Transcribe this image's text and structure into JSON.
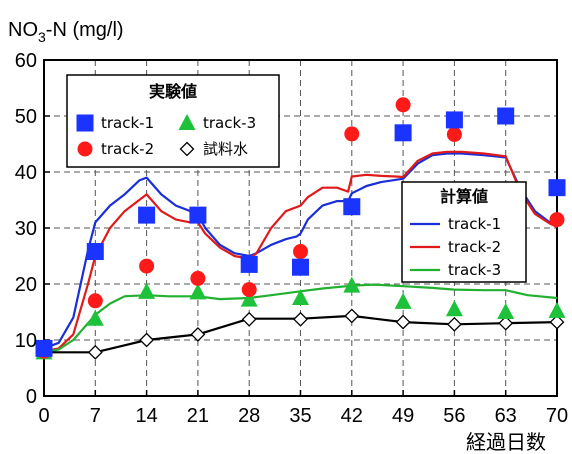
{
  "chart_data": {
    "type": "line",
    "ylabel_main": "NO",
    "ylabel_sub": "3",
    "ylabel_rest": "-N (mg/l)",
    "xlabel": "経過日数",
    "xlim": [
      0,
      70
    ],
    "ylim": [
      0,
      60
    ],
    "xticks": [
      0,
      7,
      14,
      21,
      28,
      35,
      42,
      49,
      56,
      63,
      70
    ],
    "yticks": [
      0,
      10,
      20,
      30,
      40,
      50,
      60
    ],
    "grid": true,
    "legend_measured": {
      "title": "実験値",
      "entries": [
        "track-1",
        "track-2",
        "track-3",
        "試料水"
      ],
      "placement": "top-left"
    },
    "legend_calc": {
      "title": "計算値",
      "entries": [
        "track-1",
        "track-2",
        "track-3"
      ],
      "placement": "center-right"
    },
    "measured": [
      {
        "name": "track-1",
        "marker": "square",
        "color": "#1a33ff",
        "points": [
          [
            0,
            8.5
          ],
          [
            7,
            25.8
          ],
          [
            14,
            32.3
          ],
          [
            21,
            32.3
          ],
          [
            28,
            23.5
          ],
          [
            35,
            23.0
          ],
          [
            42,
            33.8
          ],
          [
            49,
            47.0
          ],
          [
            56,
            49.3
          ],
          [
            63,
            50.0
          ],
          [
            70,
            37.2
          ]
        ]
      },
      {
        "name": "track-2",
        "marker": "circle",
        "color": "#ff1a1a",
        "points": [
          [
            0,
            8.0
          ],
          [
            7,
            17.0
          ],
          [
            14,
            23.2
          ],
          [
            21,
            21.0
          ],
          [
            28,
            19.0
          ],
          [
            35,
            25.8
          ],
          [
            42,
            46.8
          ],
          [
            49,
            52.0
          ],
          [
            56,
            46.7
          ],
          [
            63,
            49.8
          ],
          [
            70,
            31.5
          ]
        ]
      },
      {
        "name": "track-3",
        "marker": "triangle",
        "color": "#1ec23a",
        "points": [
          [
            0,
            7.8
          ],
          [
            7,
            13.8
          ],
          [
            14,
            18.6
          ],
          [
            21,
            18.5
          ],
          [
            28,
            17.2
          ],
          [
            35,
            17.5
          ],
          [
            42,
            19.7
          ],
          [
            49,
            16.8
          ],
          [
            56,
            15.5
          ],
          [
            63,
            15.0
          ],
          [
            70,
            15.2
          ]
        ]
      },
      {
        "name": "試料水",
        "marker": "diamond",
        "color": "#000000",
        "points": [
          [
            0,
            8.0
          ],
          [
            7,
            7.8
          ],
          [
            14,
            10.0
          ],
          [
            21,
            11.0
          ],
          [
            28,
            13.7
          ],
          [
            35,
            13.7
          ],
          [
            42,
            14.3
          ],
          [
            49,
            13.2
          ],
          [
            56,
            12.8
          ],
          [
            63,
            13.0
          ],
          [
            70,
            13.2
          ]
        ]
      }
    ],
    "calculated": [
      {
        "name": "track-1",
        "color": "#1a2fd6",
        "points": [
          [
            0,
            8.5
          ],
          [
            2,
            9.5
          ],
          [
            4,
            14
          ],
          [
            6,
            26
          ],
          [
            7,
            31
          ],
          [
            9,
            34
          ],
          [
            11,
            36
          ],
          [
            13,
            38.5
          ],
          [
            14,
            39
          ],
          [
            16,
            36
          ],
          [
            18,
            34
          ],
          [
            20,
            33
          ],
          [
            21,
            32.5
          ],
          [
            22,
            30
          ],
          [
            24,
            27
          ],
          [
            26,
            25.5
          ],
          [
            28,
            25
          ],
          [
            29,
            25.5
          ],
          [
            31,
            27
          ],
          [
            33,
            28
          ],
          [
            34.5,
            28.5
          ],
          [
            35,
            29
          ],
          [
            36,
            31.5
          ],
          [
            38,
            34
          ],
          [
            40,
            34.8
          ],
          [
            41.5,
            34.8
          ],
          [
            42,
            36.2
          ],
          [
            44,
            37.5
          ],
          [
            46,
            38.2
          ],
          [
            48,
            38.6
          ],
          [
            49,
            38.8
          ],
          [
            51,
            41.5
          ],
          [
            53,
            43
          ],
          [
            55,
            43.3
          ],
          [
            57,
            43.3
          ],
          [
            60,
            43
          ],
          [
            63,
            42.6
          ],
          [
            65,
            37
          ],
          [
            67,
            33
          ],
          [
            69,
            31
          ],
          [
            70,
            30.5
          ]
        ]
      },
      {
        "name": "track-2",
        "color": "#e01a1a",
        "points": [
          [
            0,
            8.0
          ],
          [
            2,
            8.5
          ],
          [
            4,
            11
          ],
          [
            6,
            20
          ],
          [
            7,
            25
          ],
          [
            9,
            30
          ],
          [
            11,
            33
          ],
          [
            13,
            35
          ],
          [
            14,
            36
          ],
          [
            16,
            33
          ],
          [
            18,
            31.5
          ],
          [
            20,
            31
          ],
          [
            21,
            31
          ],
          [
            22,
            29
          ],
          [
            24,
            26.5
          ],
          [
            26,
            25
          ],
          [
            28,
            24.5
          ],
          [
            29,
            25.5
          ],
          [
            31,
            30
          ],
          [
            33,
            33
          ],
          [
            35,
            34
          ],
          [
            36,
            35.5
          ],
          [
            38,
            37.2
          ],
          [
            40,
            37.2
          ],
          [
            41.5,
            36.5
          ],
          [
            42,
            39.2
          ],
          [
            44,
            39.5
          ],
          [
            46,
            39.3
          ],
          [
            48,
            39.2
          ],
          [
            49,
            39.1
          ],
          [
            51,
            42
          ],
          [
            53,
            43.3
          ],
          [
            55,
            43.6
          ],
          [
            57,
            43.6
          ],
          [
            60,
            43.3
          ],
          [
            63,
            42.8
          ],
          [
            65,
            36.5
          ],
          [
            67,
            32.5
          ],
          [
            69,
            30.8
          ],
          [
            70,
            30.2
          ]
        ]
      },
      {
        "name": "track-3",
        "color": "#22b030",
        "points": [
          [
            0,
            7.8
          ],
          [
            2,
            8.3
          ],
          [
            4,
            10
          ],
          [
            6,
            13
          ],
          [
            7,
            14.5
          ],
          [
            9,
            16.5
          ],
          [
            11,
            17.8
          ],
          [
            14,
            18
          ],
          [
            17,
            17.8
          ],
          [
            21,
            17.8
          ],
          [
            24,
            17.3
          ],
          [
            28,
            17.5
          ],
          [
            31,
            18
          ],
          [
            35,
            18.7
          ],
          [
            38,
            19.2
          ],
          [
            42,
            19.7
          ],
          [
            45,
            19.9
          ],
          [
            49,
            19.6
          ],
          [
            53,
            19.3
          ],
          [
            56,
            19.0
          ],
          [
            60,
            18.9
          ],
          [
            63,
            18.9
          ],
          [
            66,
            18
          ],
          [
            70,
            17.5
          ]
        ]
      },
      {
        "name": "試料水",
        "color": "#000000",
        "points": [
          [
            0,
            7.8
          ],
          [
            7,
            7.8
          ],
          [
            14,
            10.0
          ],
          [
            21,
            11.0
          ],
          [
            28,
            13.8
          ],
          [
            35,
            13.8
          ],
          [
            42,
            14.3
          ],
          [
            49,
            13.2
          ],
          [
            56,
            12.8
          ],
          [
            63,
            13.0
          ],
          [
            70,
            13.2
          ]
        ]
      }
    ]
  }
}
